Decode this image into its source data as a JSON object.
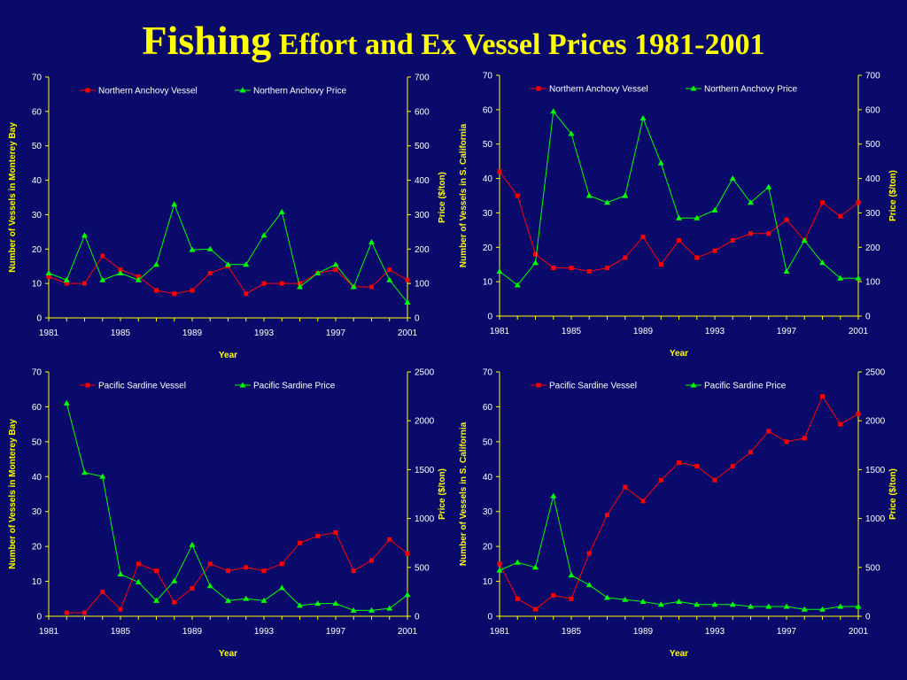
{
  "title": {
    "first": "Fishing",
    "rest": " Effort and Ex Vessel Prices 1981-2001"
  },
  "colors": {
    "background": "#0a0a6b",
    "axis": "#ffff00",
    "vessel_series": "#ff0000",
    "price_series": "#00ff00",
    "tick_text": "#ffffff"
  },
  "chart_data": [
    {
      "type": "line",
      "xlabel": "Year",
      "ylabel": "Number of Vessels in Monterey Bay",
      "y2label": "Price ($/ton)",
      "xlim": [
        1981,
        2001
      ],
      "xticks": [
        "1981",
        "1985",
        "1989",
        "1993",
        "1997",
        "2001"
      ],
      "ylim": [
        0,
        70
      ],
      "yticks": [
        "0",
        "10",
        "20",
        "30",
        "40",
        "50",
        "60",
        "70"
      ],
      "y2lim": [
        0,
        700
      ],
      "y2ticks": [
        "0",
        "100",
        "200",
        "300",
        "400",
        "500",
        "600",
        "700"
      ],
      "legend_position": "top",
      "series": [
        {
          "name": "Northern Anchovy Vessel",
          "axis": "left",
          "color": "#ff0000",
          "marker": "square",
          "x": [
            1981,
            1982,
            1983,
            1984,
            1985,
            1986,
            1987,
            1988,
            1989,
            1990,
            1991,
            1992,
            1993,
            1994,
            1995,
            1996,
            1997,
            1998,
            1999,
            2000,
            2001
          ],
          "values": [
            12,
            10,
            10,
            18,
            14,
            12,
            8,
            7,
            8,
            13,
            15,
            7,
            10,
            10,
            10,
            13,
            14,
            9,
            9,
            14,
            11
          ]
        },
        {
          "name": "Northern Anchovy Price",
          "axis": "right",
          "color": "#00ff00",
          "marker": "triangle",
          "x": [
            1981,
            1982,
            1983,
            1984,
            1985,
            1986,
            1987,
            1988,
            1989,
            1990,
            1991,
            1992,
            1993,
            1994,
            1995,
            1996,
            1997,
            1998,
            1999,
            2000,
            2001
          ],
          "values": [
            130,
            110,
            240,
            110,
            130,
            110,
            155,
            330,
            198,
            200,
            155,
            155,
            240,
            308,
            90,
            130,
            155,
            90,
            220,
            110,
            45
          ]
        }
      ]
    },
    {
      "type": "line",
      "xlabel": "Year",
      "ylabel": "Number of Vessels in S. California",
      "y2label": "Price ($/ton)",
      "xlim": [
        1981,
        2001
      ],
      "xticks": [
        "1981",
        "1985",
        "1989",
        "1993",
        "1997",
        "2001"
      ],
      "ylim": [
        0,
        70
      ],
      "yticks": [
        "0",
        "10",
        "20",
        "30",
        "40",
        "50",
        "60",
        "70"
      ],
      "y2lim": [
        0,
        700
      ],
      "y2ticks": [
        "0",
        "100",
        "200",
        "300",
        "400",
        "500",
        "600",
        "700"
      ],
      "legend_position": "top",
      "series": [
        {
          "name": "Northern Anchovy Vessel",
          "axis": "left",
          "color": "#ff0000",
          "marker": "square",
          "x": [
            1981,
            1982,
            1983,
            1984,
            1985,
            1986,
            1987,
            1988,
            1989,
            1990,
            1991,
            1992,
            1993,
            1994,
            1995,
            1996,
            1997,
            1998,
            1999,
            2000,
            2001
          ],
          "values": [
            42,
            35,
            18,
            14,
            14,
            13,
            14,
            17,
            23,
            15,
            22,
            17,
            19,
            22,
            24,
            24,
            28,
            22,
            33,
            29,
            33
          ]
        },
        {
          "name": "Northern Anchovy Price",
          "axis": "right",
          "color": "#00ff00",
          "marker": "triangle",
          "x": [
            1981,
            1982,
            1983,
            1984,
            1985,
            1986,
            1987,
            1988,
            1989,
            1990,
            1991,
            1992,
            1993,
            1994,
            1995,
            1996,
            1997,
            1998,
            1999,
            2000,
            2001
          ],
          "values": [
            130,
            90,
            155,
            595,
            530,
            350,
            330,
            350,
            575,
            445,
            285,
            285,
            308,
            400,
            330,
            375,
            130,
            220,
            155,
            110,
            110
          ]
        }
      ]
    },
    {
      "type": "line",
      "xlabel": "Year",
      "ylabel": "Number of Vessels in Monterey  Bay",
      "y2label": "Price ($/ton)",
      "xlim": [
        1981,
        2001
      ],
      "xticks": [
        "1981",
        "1985",
        "1989",
        "1993",
        "1997",
        "2001"
      ],
      "ylim": [
        0,
        70
      ],
      "yticks": [
        "0",
        "10",
        "20",
        "30",
        "40",
        "50",
        "60",
        "70"
      ],
      "y2lim": [
        0,
        2500
      ],
      "y2ticks": [
        "0",
        "500",
        "1000",
        "1500",
        "2000",
        "2500"
      ],
      "legend_position": "top",
      "series": [
        {
          "name": "Pacific Sardine Vessel",
          "axis": "left",
          "color": "#ff0000",
          "marker": "square",
          "x": [
            1982,
            1983,
            1984,
            1985,
            1986,
            1987,
            1988,
            1989,
            1990,
            1991,
            1992,
            1993,
            1994,
            1995,
            1996,
            1997,
            1998,
            1999,
            2000,
            2001
          ],
          "values": [
            1,
            1,
            7,
            2,
            15,
            13,
            4,
            8,
            15,
            13,
            14,
            13,
            15,
            21,
            23,
            24,
            13,
            16,
            22,
            18
          ]
        },
        {
          "name": "Pacific Sardine Price",
          "axis": "right",
          "color": "#00ff00",
          "marker": "triangle",
          "x": [
            1982,
            1983,
            1984,
            1985,
            1986,
            1987,
            1988,
            1989,
            1990,
            1991,
            1992,
            1993,
            1994,
            1995,
            1996,
            1997,
            1998,
            1999,
            2000,
            2001
          ],
          "values": [
            2180,
            1470,
            1430,
            430,
            350,
            160,
            360,
            730,
            310,
            160,
            180,
            160,
            290,
            110,
            130,
            130,
            60,
            60,
            80,
            220
          ]
        }
      ]
    },
    {
      "type": "line",
      "xlabel": "Year",
      "ylabel": "Number of Vessels in S. California",
      "y2label": "Price ($/ton)",
      "xlim": [
        1981,
        2001
      ],
      "xticks": [
        "1981",
        "1985",
        "1989",
        "1993",
        "1997",
        "2001"
      ],
      "ylim": [
        0,
        70
      ],
      "yticks": [
        "0",
        "10",
        "20",
        "30",
        "40",
        "50",
        "60",
        "70"
      ],
      "y2lim": [
        0,
        2500
      ],
      "y2ticks": [
        "0",
        "500",
        "1000",
        "1500",
        "2000",
        "2500"
      ],
      "legend_position": "top",
      "series": [
        {
          "name": "Pacific Sardine Vessel",
          "axis": "left",
          "color": "#ff0000",
          "marker": "square",
          "x": [
            1981,
            1982,
            1983,
            1984,
            1985,
            1986,
            1987,
            1988,
            1989,
            1990,
            1991,
            1992,
            1993,
            1994,
            1995,
            1996,
            1997,
            1998,
            1999,
            2000,
            2001
          ],
          "values": [
            15,
            5,
            2,
            6,
            5,
            18,
            29,
            37,
            33,
            39,
            44,
            43,
            39,
            43,
            47,
            53,
            50,
            51,
            63,
            55,
            58
          ]
        },
        {
          "name": "Pacific Sardine Price",
          "axis": "right",
          "color": "#00ff00",
          "marker": "triangle",
          "x": [
            1981,
            1982,
            1983,
            1984,
            1985,
            1986,
            1987,
            1988,
            1989,
            1990,
            1991,
            1992,
            1993,
            1994,
            1995,
            1996,
            1997,
            1998,
            1999,
            2000,
            2001
          ],
          "values": [
            470,
            550,
            500,
            1230,
            420,
            320,
            190,
            170,
            150,
            120,
            150,
            120,
            120,
            120,
            100,
            100,
            100,
            70,
            70,
            100,
            100
          ]
        }
      ]
    }
  ]
}
